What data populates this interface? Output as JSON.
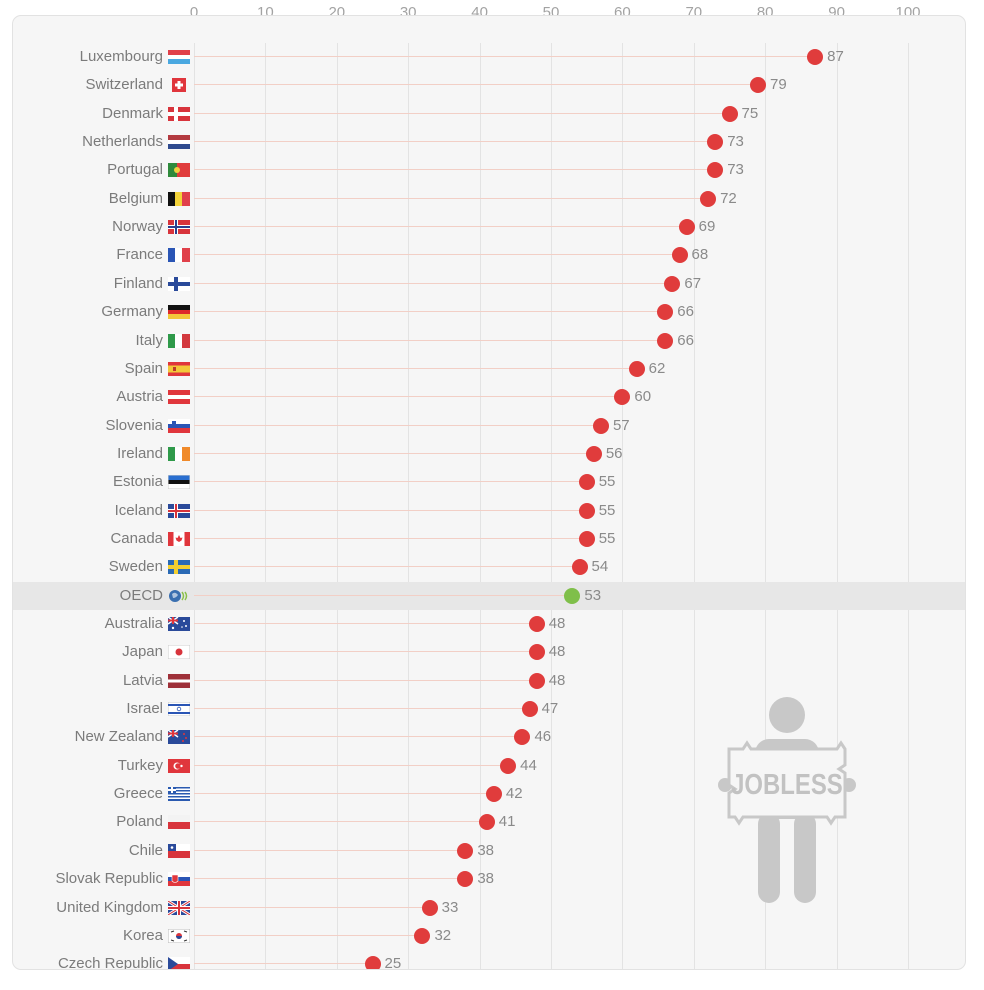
{
  "axis": {
    "ticks": [
      0,
      10,
      20,
      30,
      40,
      50,
      60,
      70,
      80,
      90,
      100
    ]
  },
  "colors": {
    "dot": "#e03c3c",
    "average_dot": "#7fbf4a",
    "highlight_row": "#e7e7e7",
    "panel": "#f6f6f6"
  },
  "illustration": {
    "sign_text": "JOBLESS"
  },
  "chart_data": {
    "type": "scatter",
    "orientation": "horizontal-lollipop",
    "title": "",
    "xlabel": "",
    "ylabel": "",
    "xlim": [
      0,
      100
    ],
    "x_ticks": [
      0,
      10,
      20,
      30,
      40,
      50,
      60,
      70,
      80,
      90,
      100
    ],
    "grid": true,
    "highlight": "OECD",
    "categories": [
      "Luxembourg",
      "Switzerland",
      "Denmark",
      "Netherlands",
      "Portugal",
      "Belgium",
      "Norway",
      "France",
      "Finland",
      "Germany",
      "Italy",
      "Spain",
      "Austria",
      "Slovenia",
      "Ireland",
      "Estonia",
      "Iceland",
      "Canada",
      "Sweden",
      "OECD",
      "Australia",
      "Japan",
      "Latvia",
      "Israel",
      "New Zealand",
      "Turkey",
      "Greece",
      "Poland",
      "Chile",
      "Slovak Republic",
      "United Kingdom",
      "Korea",
      "Czech Republic"
    ],
    "values": [
      87,
      79,
      75,
      73,
      73,
      72,
      69,
      68,
      67,
      66,
      66,
      62,
      60,
      57,
      56,
      55,
      55,
      55,
      54,
      53,
      48,
      48,
      48,
      47,
      46,
      44,
      42,
      41,
      38,
      38,
      33,
      32,
      25
    ]
  },
  "rows": [
    {
      "name": "Luxembourg",
      "value": "87",
      "flag": "lu"
    },
    {
      "name": "Switzerland",
      "value": "79",
      "flag": "ch"
    },
    {
      "name": "Denmark",
      "value": "75",
      "flag": "dk"
    },
    {
      "name": "Netherlands",
      "value": "73",
      "flag": "nl"
    },
    {
      "name": "Portugal",
      "value": "73",
      "flag": "pt"
    },
    {
      "name": "Belgium",
      "value": "72",
      "flag": "be"
    },
    {
      "name": "Norway",
      "value": "69",
      "flag": "no"
    },
    {
      "name": "France",
      "value": "68",
      "flag": "fr"
    },
    {
      "name": "Finland",
      "value": "67",
      "flag": "fi"
    },
    {
      "name": "Germany",
      "value": "66",
      "flag": "de"
    },
    {
      "name": "Italy",
      "value": "66",
      "flag": "it"
    },
    {
      "name": "Spain",
      "value": "62",
      "flag": "es"
    },
    {
      "name": "Austria",
      "value": "60",
      "flag": "at"
    },
    {
      "name": "Slovenia",
      "value": "57",
      "flag": "si"
    },
    {
      "name": "Ireland",
      "value": "56",
      "flag": "ie"
    },
    {
      "name": "Estonia",
      "value": "55",
      "flag": "ee"
    },
    {
      "name": "Iceland",
      "value": "55",
      "flag": "is"
    },
    {
      "name": "Canada",
      "value": "55",
      "flag": "ca"
    },
    {
      "name": "Sweden",
      "value": "54",
      "flag": "se"
    },
    {
      "name": "OECD",
      "value": "53",
      "flag": "oecd",
      "highlight": true
    },
    {
      "name": "Australia",
      "value": "48",
      "flag": "au"
    },
    {
      "name": "Japan",
      "value": "48",
      "flag": "jp"
    },
    {
      "name": "Latvia",
      "value": "48",
      "flag": "lv"
    },
    {
      "name": "Israel",
      "value": "47",
      "flag": "il"
    },
    {
      "name": "New Zealand",
      "value": "46",
      "flag": "nz"
    },
    {
      "name": "Turkey",
      "value": "44",
      "flag": "tr"
    },
    {
      "name": "Greece",
      "value": "42",
      "flag": "gr"
    },
    {
      "name": "Poland",
      "value": "41",
      "flag": "pl"
    },
    {
      "name": "Chile",
      "value": "38",
      "flag": "cl"
    },
    {
      "name": "Slovak Republic",
      "value": "38",
      "flag": "sk"
    },
    {
      "name": "United Kingdom",
      "value": "33",
      "flag": "gb"
    },
    {
      "name": "Korea",
      "value": "32",
      "flag": "kr"
    },
    {
      "name": "Czech Republic",
      "value": "25",
      "flag": "cz"
    }
  ]
}
